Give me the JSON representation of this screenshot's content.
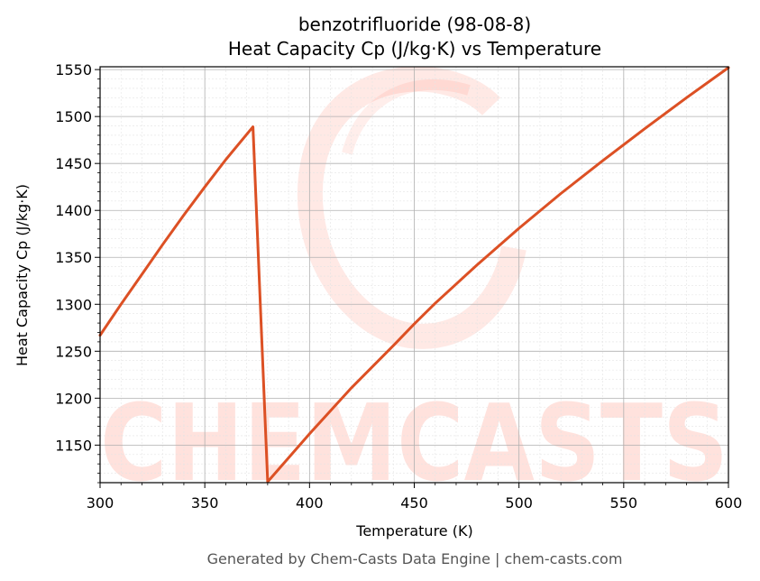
{
  "chart_data": {
    "type": "line",
    "title_line1": "benzotrifluoride (98-08-8)",
    "title_line2": "Heat Capacity Cp (J/kg·K) vs Temperature",
    "xlabel": "Temperature (K)",
    "ylabel": "Heat Capacity Cp (J/kg·K)",
    "xlim": [
      300,
      600
    ],
    "ylim": [
      1110,
      1553
    ],
    "xticks": [
      300,
      350,
      400,
      450,
      500,
      550,
      600
    ],
    "yticks": [
      1150,
      1200,
      1250,
      1300,
      1350,
      1400,
      1450,
      1500,
      1550
    ],
    "grid": true,
    "line_color": "#dc5024",
    "series": [
      {
        "x": [
          300,
          310,
          320,
          330,
          340,
          350,
          360,
          373,
          380,
          400,
          420,
          440,
          450,
          460,
          480,
          500,
          520,
          540,
          560,
          580,
          600
        ],
        "y": [
          1267,
          1300,
          1332,
          1364,
          1395,
          1425,
          1454,
          1489,
          1111,
          1162,
          1211,
          1256,
          1279,
          1301,
          1342,
          1381,
          1418,
          1453,
          1487,
          1520,
          1552
        ]
      }
    ]
  },
  "watermark": "CHEMCASTS",
  "footer": "Generated by Chem-Casts Data Engine | chem-casts.com"
}
